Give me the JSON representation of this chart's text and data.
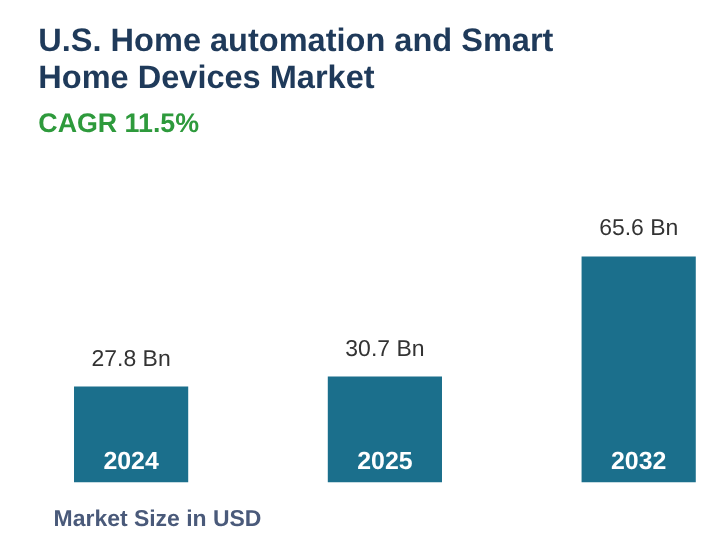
{
  "chart_data": {
    "type": "bar",
    "title": "U.S. Home automation and Smart Home Devices Market",
    "subtitle": "CAGR 11.5%",
    "categories": [
      "2024",
      "2025",
      "2032"
    ],
    "values": [
      27.8,
      30.7,
      65.6
    ],
    "value_labels": [
      "27.8 Bn",
      "30.7 Bn",
      "65.6 Bn"
    ],
    "color": "#1b6f8c",
    "annotations": [
      "Market Size in USD"
    ]
  }
}
